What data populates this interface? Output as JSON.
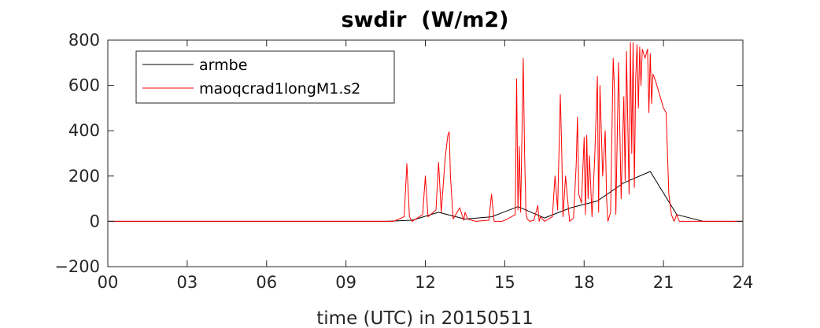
{
  "chart_data": {
    "type": "line",
    "title": "swdir  (W/m2)",
    "xlabel": "time (UTC) in 20150511",
    "ylabel": "",
    "xlim": [
      0,
      24
    ],
    "ylim": [
      -200,
      800
    ],
    "x_ticks": [
      0,
      3,
      6,
      9,
      12,
      15,
      18,
      21,
      24
    ],
    "x_tick_labels": [
      "00",
      "03",
      "06",
      "09",
      "12",
      "15",
      "18",
      "21",
      "24"
    ],
    "y_ticks": [
      -200,
      0,
      200,
      400,
      600,
      800
    ],
    "y_tick_labels": [
      "−200",
      "0",
      "200",
      "400",
      "600",
      "800"
    ],
    "grid": false,
    "legend": "top-left",
    "series": [
      {
        "name": "armbe",
        "color": "#000000",
        "x": [
          0,
          10.5,
          11.5,
          12.5,
          13.5,
          14.5,
          15.5,
          16.5,
          17.5,
          18.5,
          19.5,
          20.5,
          21.5,
          22.5,
          24
        ],
        "y": [
          0,
          0,
          5,
          40,
          10,
          20,
          65,
          15,
          60,
          90,
          170,
          220,
          30,
          0,
          0
        ]
      },
      {
        "name": "maoqcrad1longM1.s2",
        "color": "#ff0000",
        "x": [
          0,
          10.8,
          11.2,
          11.3,
          11.4,
          11.5,
          11.9,
          12.0,
          12.1,
          12.4,
          12.5,
          12.6,
          12.75,
          12.85,
          12.9,
          12.95,
          13.05,
          13.3,
          13.45,
          13.5,
          13.6,
          13.9,
          14.4,
          14.5,
          14.6,
          14.9,
          15.1,
          15.4,
          15.45,
          15.5,
          15.55,
          15.6,
          15.7,
          15.75,
          15.8,
          15.85,
          15.95,
          16.1,
          16.25,
          16.3,
          16.35,
          16.5,
          16.8,
          16.9,
          17.0,
          17.1,
          17.15,
          17.2,
          17.3,
          17.45,
          17.6,
          17.7,
          17.75,
          17.8,
          17.9,
          18.0,
          18.05,
          18.1,
          18.15,
          18.2,
          18.3,
          18.4,
          18.5,
          18.55,
          18.6,
          18.7,
          18.8,
          18.85,
          18.9,
          19.0,
          19.1,
          19.15,
          19.2,
          19.3,
          19.4,
          19.5,
          19.55,
          19.6,
          19.7,
          19.75,
          19.8,
          19.85,
          19.9,
          19.95,
          20.0,
          20.05,
          20.1,
          20.15,
          20.2,
          20.3,
          20.4,
          20.45,
          20.5,
          20.55,
          20.6,
          20.7,
          20.8,
          20.9,
          21.0,
          21.1,
          21.15,
          21.2,
          21.3,
          21.4,
          21.5,
          21.6,
          21.7,
          24
        ],
        "y": [
          0,
          0,
          20,
          255,
          20,
          0,
          30,
          200,
          20,
          50,
          260,
          40,
          280,
          380,
          395,
          200,
          10,
          60,
          5,
          40,
          10,
          0,
          5,
          120,
          0,
          0,
          10,
          30,
          630,
          50,
          330,
          40,
          720,
          300,
          40,
          10,
          0,
          5,
          70,
          0,
          20,
          0,
          20,
          200,
          50,
          560,
          330,
          20,
          200,
          0,
          15,
          250,
          460,
          120,
          80,
          370,
          30,
          380,
          100,
          290,
          20,
          280,
          640,
          40,
          600,
          200,
          400,
          100,
          0,
          40,
          720,
          580,
          30,
          700,
          100,
          550,
          180,
          750,
          120,
          790,
          300,
          790,
          150,
          630,
          780,
          500,
          770,
          600,
          760,
          720,
          760,
          480,
          740,
          520,
          650,
          620,
          580,
          540,
          500,
          480,
          300,
          120,
          30,
          0,
          30,
          0,
          0,
          0
        ]
      }
    ]
  }
}
